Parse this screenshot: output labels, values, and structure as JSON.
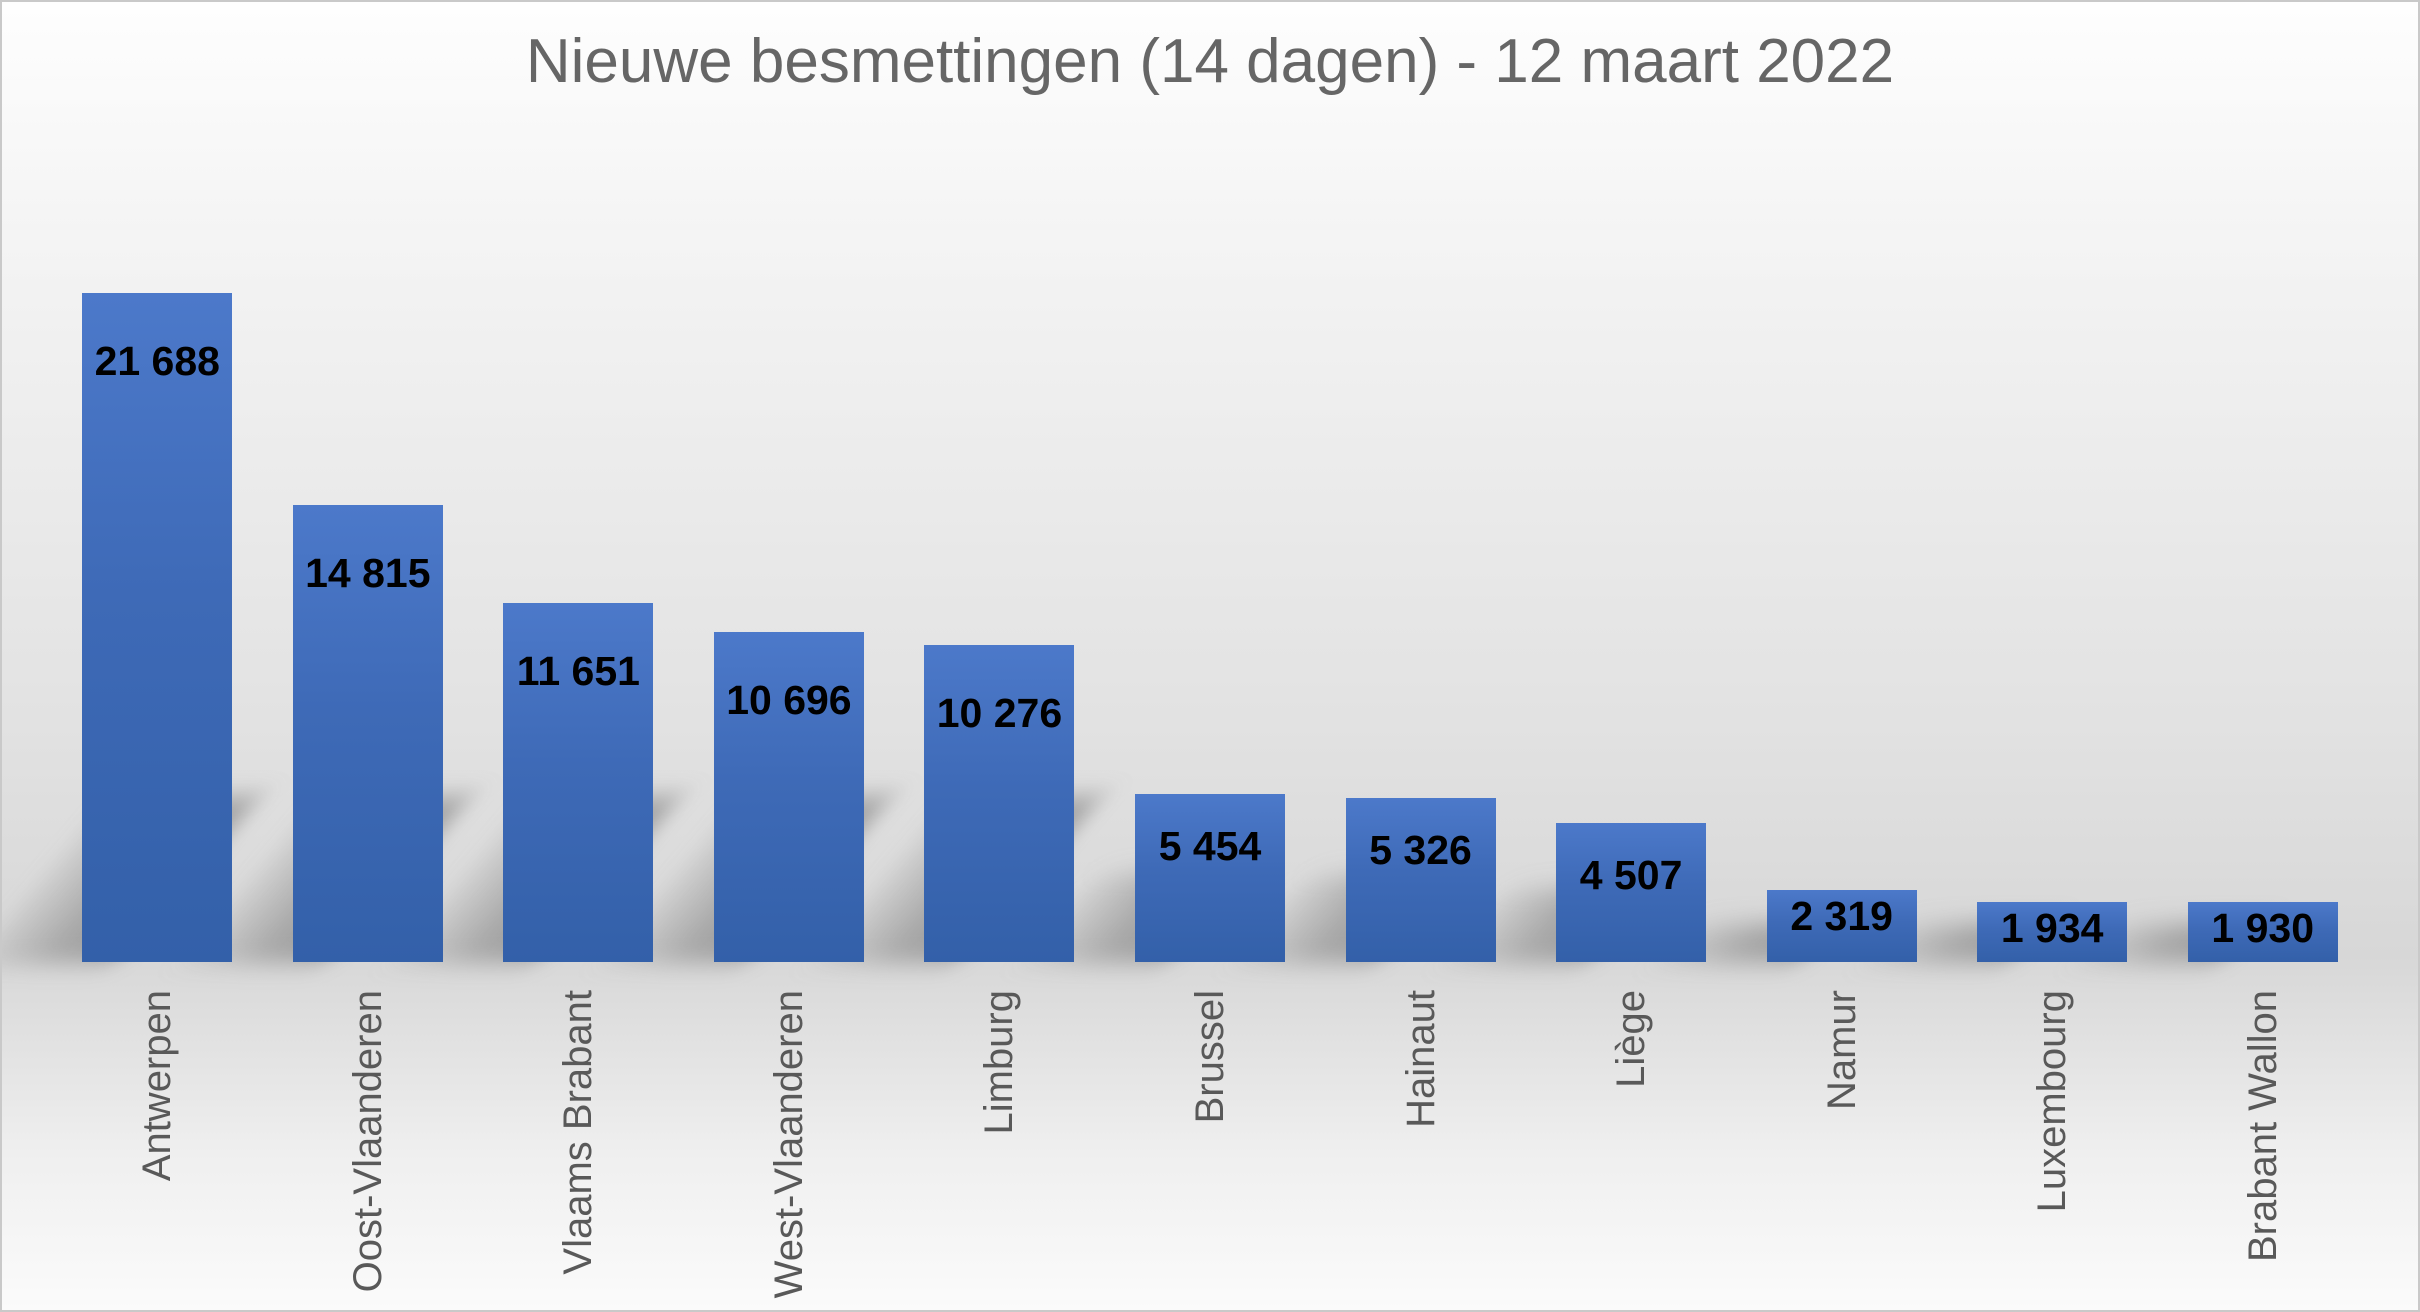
{
  "title": "Nieuwe besmettingen (14 dagen) - 12 maart 2022",
  "chart_data": {
    "type": "bar",
    "title": "Nieuwe besmettingen (14 dagen) - 12 maart 2022",
    "categories": [
      "Antwerpen",
      "Oost-Vlaanderen",
      "Vlaams Brabant",
      "West-Vlaanderen",
      "Limburg",
      "Brussel",
      "Hainaut",
      "Liège",
      "Namur",
      "Luxembourg",
      "Brabant Wallon"
    ],
    "values": [
      21688,
      14815,
      11651,
      10696,
      10276,
      5454,
      5326,
      4507,
      2319,
      1934,
      1930
    ],
    "value_labels": [
      "21 688",
      "14 815",
      "11 651",
      "10 696",
      "10 276",
      "5 454",
      "5 326",
      "4 507",
      "2 319",
      "1 934",
      "1 930"
    ],
    "xlabel": "",
    "ylabel": "",
    "ylim": [
      0,
      21688
    ],
    "grid": false,
    "legend": null,
    "value_label_position": "inside-top",
    "category_label_rotation": -90,
    "colors": {
      "bar_top": "#4C79CA",
      "bar_bottom": "#3360A9",
      "title": "#666666",
      "category_label": "#595959",
      "value_label": "#000000",
      "background_light": "#fbfbfb",
      "background_mid": "#d7d7d7",
      "border": "#c9c9c9"
    }
  }
}
